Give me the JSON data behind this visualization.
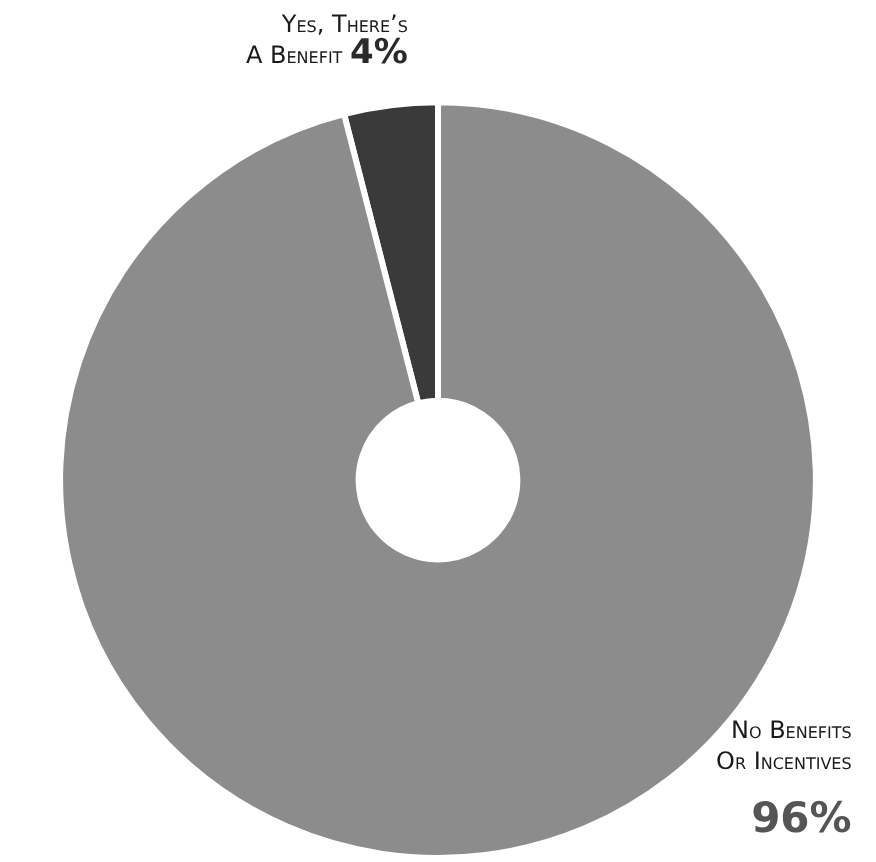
{
  "chart_data": {
    "type": "donut",
    "categories": [
      "Yes, There’s A Benefit",
      "No Benefits Or Incentives"
    ],
    "values": [
      4,
      96
    ],
    "colors": [
      "#3a3a3a",
      "#8c8c8c"
    ],
    "value_labels": [
      "4%",
      "96%"
    ],
    "legend": false
  }
}
